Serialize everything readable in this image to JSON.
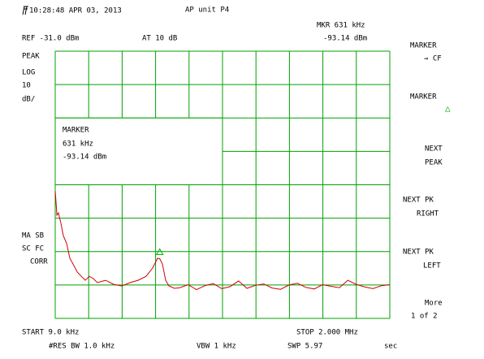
{
  "header": {
    "timestamp": "10:28:48 APR 03, 2013",
    "title": "AP unit P4",
    "marker_freq": "MKR 631 kHz",
    "marker_level": "-93.14 dBm",
    "ref": "REF -31.0 dBm",
    "atten": "AT 10 dB"
  },
  "left_labels": [
    "PEAK",
    "LOG",
    "10",
    "dB/",
    "MA SB",
    "SC FC",
    "CORR"
  ],
  "marker_box": [
    "MARKER",
    "631 kHz",
    "-93.14 dBm"
  ],
  "softkeys": [
    [
      "MARKER",
      "→ CF"
    ],
    [
      "MARKER",
      "△"
    ],
    [
      "NEXT",
      "PEAK"
    ],
    [
      "NEXT PK",
      "RIGHT"
    ],
    [
      "NEXT PK",
      "LEFT"
    ],
    [
      "More",
      "1 of 2"
    ]
  ],
  "footer": {
    "start": "START 9.0 kHz",
    "stop": "STOP 2.000 MHz",
    "rbw": "#RES BW 1.0 kHz",
    "vbw": "VBW 1 kHz",
    "sweep": "SWP 5.97",
    "sweep_unit": "sec"
  },
  "chart_data": {
    "type": "line",
    "color": "#d00000",
    "marker_color": "#00b000",
    "grid_color": "#00a000",
    "xlim": [
      9,
      2000
    ],
    "ylim": [
      -111,
      -31
    ],
    "x": [
      9,
      19,
      28,
      43,
      57,
      77,
      96,
      115,
      140,
      164,
      188,
      212,
      236,
      260,
      309,
      357,
      405,
      454,
      502,
      550,
      589,
      618,
      631,
      647,
      666,
      686,
      719,
      750,
      800,
      850,
      900,
      950,
      1000,
      1050,
      1100,
      1150,
      1200,
      1250,
      1300,
      1350,
      1400,
      1450,
      1500,
      1550,
      1600,
      1650,
      1700,
      1750,
      1800,
      1850,
      1900,
      1950,
      2000
    ],
    "values": [
      -72.8,
      -80.1,
      -79.4,
      -82.5,
      -86.2,
      -88.6,
      -93,
      -94.7,
      -97.1,
      -98.4,
      -99.6,
      -98.4,
      -99.1,
      -100.3,
      -99.6,
      -100.8,
      -101.3,
      -100.3,
      -99.6,
      -98.4,
      -95.9,
      -93,
      -93.14,
      -94.7,
      -99.6,
      -101.3,
      -102,
      -101.8,
      -100.9,
      -102.4,
      -101.2,
      -100.6,
      -102.1,
      -101.5,
      -99.8,
      -102.0,
      -101.1,
      -100.7,
      -101.9,
      -102.3,
      -101.0,
      -100.5,
      -101.7,
      -102.2,
      -100.9,
      -101.4,
      -101.8,
      -99.6,
      -100.8,
      -101.6,
      -102.1,
      -101.2,
      -100.9
    ],
    "marker_index": 22
  }
}
